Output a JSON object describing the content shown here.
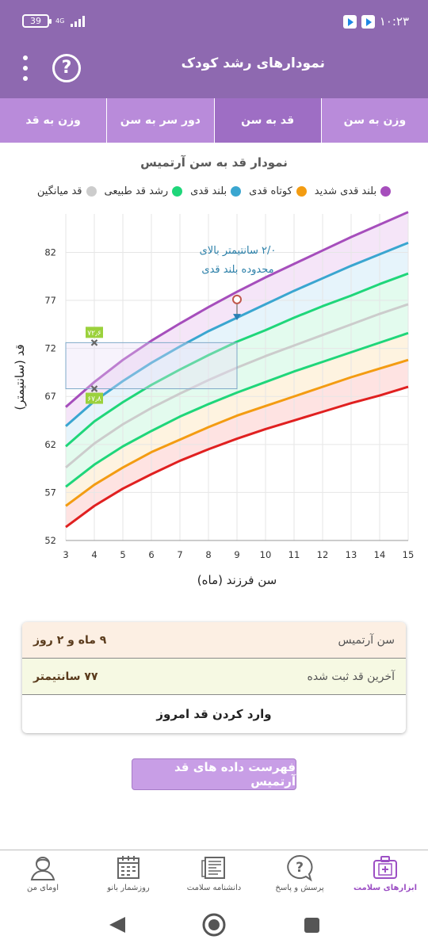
{
  "status_bar": {
    "battery": "39",
    "network": "4G",
    "time": "۱۰:۲۳"
  },
  "app_bar": {
    "title": "نمودارهای رشد کودک",
    "help_icon": "help-icon",
    "menu_icon": "more-vert-icon"
  },
  "tabs": [
    {
      "label": "وزن به سن",
      "active": false
    },
    {
      "label": "قد به سن",
      "active": true
    },
    {
      "label": "دور سر به سن",
      "active": false
    },
    {
      "label": "وزن به قد",
      "active": false
    }
  ],
  "chart_title": "نمودار قد به سن  آرتمیس",
  "legend": [
    {
      "label": "بلند قدی شدید",
      "color": "#a64ebc"
    },
    {
      "label": "کوتاه قدی",
      "color": "#f39c12"
    },
    {
      "label": "بلند قدی",
      "color": "#3aa6d0"
    },
    {
      "label": "رشد قد طبیعی",
      "color": "#1fd67a"
    },
    {
      "label": "قد میانگین",
      "color": "#cccccc"
    }
  ],
  "chart_data": {
    "type": "line",
    "xlabel": "سن فرزند (ماه)",
    "ylabel": "قد (سانتیمتر)",
    "xlim": [
      3,
      15
    ],
    "ylim": [
      52,
      86
    ],
    "x_ticks": [
      3,
      4,
      5,
      6,
      7,
      8,
      9,
      10,
      11,
      12,
      13,
      14,
      15
    ],
    "y_ticks": [
      52,
      57,
      62,
      67,
      72,
      77,
      82
    ],
    "x": [
      3,
      4,
      5,
      6,
      7,
      8,
      9,
      10,
      11,
      12,
      13,
      14,
      15
    ],
    "series": [
      {
        "color": "#a64ebc",
        "values": [
          65.9,
          68.5,
          70.8,
          72.8,
          74.6,
          76.3,
          77.9,
          79.4,
          80.8,
          82.2,
          83.6,
          84.9,
          86.2
        ]
      },
      {
        "color": "#3aa6d0",
        "values": [
          63.9,
          66.5,
          68.6,
          70.5,
          72.2,
          73.8,
          75.2,
          76.6,
          78.0,
          79.3,
          80.6,
          81.8,
          83.0
        ]
      },
      {
        "color": "#1fd67a",
        "values": [
          61.8,
          64.4,
          66.4,
          68.2,
          69.8,
          71.3,
          72.7,
          73.9,
          75.2,
          76.4,
          77.5,
          78.7,
          79.8
        ]
      },
      {
        "color": "#cccccc",
        "values": [
          59.6,
          62.1,
          64.1,
          65.8,
          67.3,
          68.7,
          70.0,
          71.2,
          72.3,
          73.4,
          74.5,
          75.6,
          76.6
        ]
      },
      {
        "color": "#1fd67a",
        "values": [
          57.6,
          59.9,
          61.8,
          63.4,
          64.9,
          66.2,
          67.4,
          68.5,
          69.6,
          70.6,
          71.6,
          72.6,
          73.6
        ]
      },
      {
        "color": "#f39c12",
        "values": [
          55.6,
          57.8,
          59.6,
          61.2,
          62.5,
          63.8,
          65.0,
          66.0,
          67.0,
          68.0,
          69.0,
          69.9,
          70.8
        ]
      },
      {
        "color": "#e02020",
        "values": [
          53.4,
          55.6,
          57.4,
          58.9,
          60.3,
          61.5,
          62.6,
          63.6,
          64.5,
          65.4,
          66.3,
          67.1,
          68.0
        ]
      }
    ],
    "band_colors": [
      "#f1dcf6",
      "#def0f9",
      "#dafae8",
      "#dafae8",
      "#fdefd5",
      "#fddad8"
    ],
    "highlight_region": {
      "x": [
        3,
        9
      ],
      "y": [
        67.8,
        72.6
      ]
    },
    "markers": [
      {
        "x": 4,
        "y": 72.6,
        "label": "۷۲٫۶"
      },
      {
        "x": 4,
        "y": 67.8,
        "label": "۶۷٫۸"
      }
    ],
    "current_point": {
      "x": 9,
      "y": 77.1,
      "reference": 75.1
    },
    "annotation": {
      "line1": "۲/۰ سانتیمتر بالای",
      "line2": "محدوده بلند قدی"
    }
  },
  "info_card": {
    "age_label": "سن  آرتمیس",
    "age_value": "۹ ماه و ۲ روز",
    "last_height_label": "آخرین قد ثبت شده",
    "last_height_value": "۷۷ سانتیمتر",
    "enter_height_button": "وارد کردن قد امروز"
  },
  "list_button": "فهرست داده های قد  آرتمیس",
  "bottom_nav": [
    {
      "label": "ابزارهای سلامت",
      "icon": "health-kit-icon",
      "active": true
    },
    {
      "label": "پرسش و پاسخ",
      "icon": "question-bubble-icon",
      "active": false
    },
    {
      "label": "دانشنامه سلامت",
      "icon": "encyclopedia-icon",
      "active": false
    },
    {
      "label": "روزشمار بانو",
      "icon": "calendar-icon",
      "active": false
    },
    {
      "label": "اومای من",
      "icon": "profile-icon",
      "active": false
    }
  ]
}
